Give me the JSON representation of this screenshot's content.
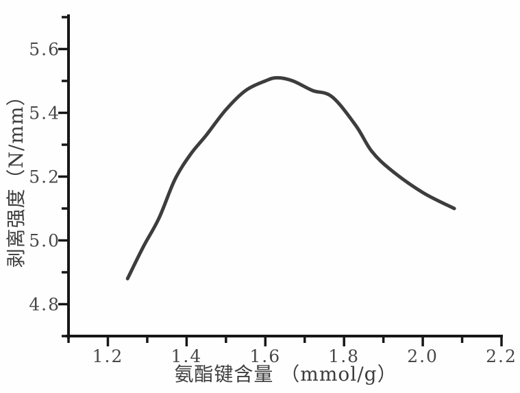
{
  "figure": {
    "background_color": "#fefefe",
    "axis_color": "#161616",
    "tick_label_color": "#474747",
    "curve_color": "#3d3d3d"
  },
  "chart_data": {
    "type": "line",
    "title": "",
    "xlabel": "氨酯键含量 （mmol/g）",
    "ylabel": "剥离强度（N/mm）",
    "xlim": [
      1.1,
      2.2
    ],
    "ylim": [
      4.7,
      5.7
    ],
    "grid": false,
    "legend": null,
    "x_major_ticks": [
      1.2,
      1.4,
      1.6,
      1.8,
      2.0,
      2.2
    ],
    "x_tick_labels": [
      "1.2",
      "1.4",
      "1.6",
      "1.8",
      "2.0",
      "2.2"
    ],
    "x_minor_ticks": [
      1.1,
      1.3,
      1.5,
      1.7,
      1.9,
      2.1
    ],
    "y_major_ticks": [
      4.8,
      5.0,
      5.2,
      5.4,
      5.6
    ],
    "y_tick_labels": [
      "4.8",
      "5.0",
      "5.2",
      "5.4",
      "5.6"
    ],
    "y_minor_ticks": [
      4.7,
      4.9,
      5.1,
      5.3,
      5.5,
      5.7
    ],
    "series": [
      {
        "name": "peel_strength",
        "color": "#3d3d3d",
        "x": [
          1.25,
          1.29,
          1.33,
          1.37,
          1.41,
          1.45,
          1.5,
          1.55,
          1.6,
          1.63,
          1.67,
          1.72,
          1.77,
          1.83,
          1.87,
          1.92,
          2.0,
          2.08
        ],
        "y": [
          4.88,
          4.98,
          5.07,
          5.19,
          5.27,
          5.33,
          5.41,
          5.47,
          5.5,
          5.51,
          5.5,
          5.47,
          5.45,
          5.36,
          5.28,
          5.22,
          5.15,
          5.1
        ]
      }
    ]
  }
}
